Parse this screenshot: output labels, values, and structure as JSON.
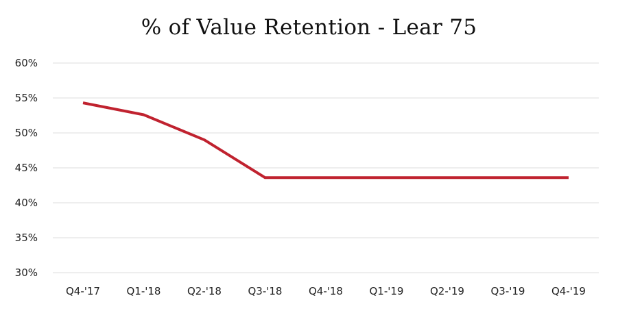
{
  "chart_data": {
    "type": "line",
    "title": "% of Value Retention - Lear 75",
    "xlabel": "",
    "ylabel": "",
    "categories": [
      "Q4-'17",
      "Q1-'18",
      "Q2-'18",
      "Q3-'18",
      "Q4-'18",
      "Q1-'19",
      "Q2-'19",
      "Q3-'19",
      "Q4-'19"
    ],
    "series": [
      {
        "values": [
          54.3,
          52.6,
          49.0,
          43.6,
          43.6,
          43.6,
          43.6,
          43.6,
          43.6
        ],
        "color": "#c0222f"
      }
    ],
    "ylim": [
      30,
      60
    ],
    "yticks": [
      30,
      35,
      40,
      45,
      50,
      55,
      60
    ],
    "ytick_format": "%",
    "grid": true,
    "legend": "none"
  }
}
